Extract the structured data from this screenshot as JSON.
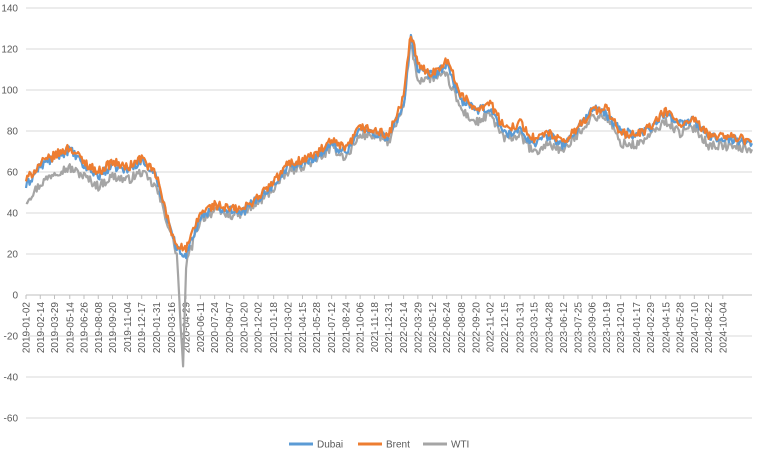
{
  "chart_data": {
    "type": "line",
    "title": "",
    "xlabel": "",
    "ylabel": "",
    "ylim": [
      -60,
      140
    ],
    "yticks": [
      -60,
      -40,
      -20,
      0,
      20,
      40,
      60,
      80,
      100,
      120,
      140
    ],
    "grid": "horizontal",
    "legend": "bottom-center",
    "x_start": "2019-01-02",
    "x_end": "2024-12-31",
    "x_tick_labels": [
      "2019-01-02",
      "2019-02-14",
      "2019-03-29",
      "2019-05-14",
      "2019-06-26",
      "2019-08-08",
      "2019-09-20",
      "2019-11-04",
      "2019-12-17",
      "2020-01-31",
      "2020-03-16",
      "2020-04-29",
      "2020-06-11",
      "2020-07-24",
      "2020-09-07",
      "2020-10-20",
      "2020-12-02",
      "2021-01-18",
      "2021-03-02",
      "2021-04-15",
      "2021-05-28",
      "2021-07-12",
      "2021-08-24",
      "2021-10-06",
      "2021-11-18",
      "2021-12-31",
      "2022-02-14",
      "2022-03-29",
      "2022-05-12",
      "2022-06-24",
      "2022-08-08",
      "2022-09-20",
      "2022-11-02",
      "2022-12-15",
      "2023-01-31",
      "2023-03-15",
      "2023-04-28",
      "2023-06-12",
      "2023-07-25",
      "2023-09-06",
      "2023-10-19",
      "2023-12-01",
      "2024-01-17",
      "2024-02-29",
      "2024-04-15",
      "2024-05-28",
      "2024-07-10",
      "2024-08-22",
      "2024-10-04"
    ],
    "series": [
      {
        "name": "Dubai",
        "color": "#5B9BD5",
        "points": [
          [
            "2019-01-02",
            53
          ],
          [
            "2019-02-14",
            63
          ],
          [
            "2019-03-29",
            67
          ],
          [
            "2019-05-14",
            71
          ],
          [
            "2019-06-26",
            63
          ],
          [
            "2019-08-08",
            58
          ],
          [
            "2019-09-20",
            63
          ],
          [
            "2019-11-04",
            61
          ],
          [
            "2019-12-17",
            66
          ],
          [
            "2020-01-31",
            57
          ],
          [
            "2020-03-16",
            31
          ],
          [
            "2020-04-01",
            22
          ],
          [
            "2020-04-29",
            20
          ],
          [
            "2020-06-11",
            38
          ],
          [
            "2020-07-24",
            43
          ],
          [
            "2020-09-07",
            42
          ],
          [
            "2020-10-20",
            41
          ],
          [
            "2020-12-02",
            47
          ],
          [
            "2021-01-18",
            54
          ],
          [
            "2021-03-02",
            63
          ],
          [
            "2021-04-15",
            64
          ],
          [
            "2021-05-28",
            68
          ],
          [
            "2021-07-12",
            73
          ],
          [
            "2021-08-24",
            70
          ],
          [
            "2021-10-06",
            81
          ],
          [
            "2021-11-18",
            79
          ],
          [
            "2021-12-31",
            77
          ],
          [
            "2022-02-14",
            92
          ],
          [
            "2022-03-08",
            127
          ],
          [
            "2022-03-29",
            109
          ],
          [
            "2022-05-12",
            107
          ],
          [
            "2022-06-24",
            112
          ],
          [
            "2022-08-08",
            95
          ],
          [
            "2022-09-20",
            90
          ],
          [
            "2022-11-02",
            91
          ],
          [
            "2022-12-15",
            79
          ],
          [
            "2023-01-31",
            80
          ],
          [
            "2023-03-15",
            74
          ],
          [
            "2023-04-28",
            78
          ],
          [
            "2023-06-12",
            73
          ],
          [
            "2023-07-25",
            81
          ],
          [
            "2023-09-06",
            91
          ],
          [
            "2023-10-19",
            88
          ],
          [
            "2023-12-01",
            80
          ],
          [
            "2024-01-17",
            78
          ],
          [
            "2024-02-29",
            82
          ],
          [
            "2024-04-15",
            89
          ],
          [
            "2024-05-28",
            84
          ],
          [
            "2024-07-10",
            85
          ],
          [
            "2024-08-22",
            77
          ],
          [
            "2024-10-04",
            77
          ],
          [
            "2024-12-31",
            74
          ]
        ]
      },
      {
        "name": "Brent",
        "color": "#ED7D31",
        "points": [
          [
            "2019-01-02",
            56
          ],
          [
            "2019-02-14",
            64
          ],
          [
            "2019-03-29",
            68
          ],
          [
            "2019-05-14",
            72
          ],
          [
            "2019-06-26",
            65
          ],
          [
            "2019-08-08",
            60
          ],
          [
            "2019-09-20",
            65
          ],
          [
            "2019-11-04",
            62
          ],
          [
            "2019-12-17",
            67
          ],
          [
            "2020-01-31",
            58
          ],
          [
            "2020-03-16",
            30
          ],
          [
            "2020-04-01",
            25
          ],
          [
            "2020-04-29",
            22
          ],
          [
            "2020-06-11",
            40
          ],
          [
            "2020-07-24",
            44
          ],
          [
            "2020-09-07",
            42
          ],
          [
            "2020-10-20",
            42
          ],
          [
            "2020-12-02",
            48
          ],
          [
            "2021-01-18",
            55
          ],
          [
            "2021-03-02",
            64
          ],
          [
            "2021-04-15",
            66
          ],
          [
            "2021-05-28",
            69
          ],
          [
            "2021-07-12",
            75
          ],
          [
            "2021-08-24",
            71
          ],
          [
            "2021-10-06",
            82
          ],
          [
            "2021-11-18",
            80
          ],
          [
            "2021-12-31",
            78
          ],
          [
            "2022-02-14",
            96
          ],
          [
            "2022-03-08",
            128
          ],
          [
            "2022-03-29",
            112
          ],
          [
            "2022-05-12",
            108
          ],
          [
            "2022-06-24",
            115
          ],
          [
            "2022-08-08",
            97
          ],
          [
            "2022-09-20",
            91
          ],
          [
            "2022-11-02",
            94
          ],
          [
            "2022-12-15",
            81
          ],
          [
            "2023-01-31",
            84
          ],
          [
            "2023-03-15",
            76
          ],
          [
            "2023-04-28",
            79
          ],
          [
            "2023-06-12",
            74
          ],
          [
            "2023-07-25",
            82
          ],
          [
            "2023-09-06",
            90
          ],
          [
            "2023-10-19",
            91
          ],
          [
            "2023-12-01",
            79
          ],
          [
            "2024-01-17",
            78
          ],
          [
            "2024-02-29",
            82
          ],
          [
            "2024-04-15",
            90
          ],
          [
            "2024-05-28",
            83
          ],
          [
            "2024-07-10",
            85
          ],
          [
            "2024-08-22",
            78
          ],
          [
            "2024-10-04",
            78
          ],
          [
            "2024-12-31",
            75
          ]
        ]
      },
      {
        "name": "WTI",
        "color": "#A5A5A5",
        "points": [
          [
            "2019-01-02",
            46
          ],
          [
            "2019-02-14",
            54
          ],
          [
            "2019-03-29",
            60
          ],
          [
            "2019-05-14",
            62
          ],
          [
            "2019-06-26",
            58
          ],
          [
            "2019-08-08",
            53
          ],
          [
            "2019-09-20",
            58
          ],
          [
            "2019-11-04",
            56
          ],
          [
            "2019-12-17",
            60
          ],
          [
            "2020-01-31",
            52
          ],
          [
            "2020-03-16",
            29
          ],
          [
            "2020-04-01",
            20
          ],
          [
            "2020-04-20",
            -37
          ],
          [
            "2020-04-29",
            15
          ],
          [
            "2020-06-11",
            37
          ],
          [
            "2020-07-24",
            41
          ],
          [
            "2020-09-07",
            39
          ],
          [
            "2020-10-20",
            40
          ],
          [
            "2020-12-02",
            45
          ],
          [
            "2021-01-18",
            52
          ],
          [
            "2021-03-02",
            60
          ],
          [
            "2021-04-15",
            63
          ],
          [
            "2021-05-28",
            66
          ],
          [
            "2021-07-12",
            72
          ],
          [
            "2021-08-24",
            67
          ],
          [
            "2021-10-06",
            78
          ],
          [
            "2021-11-18",
            78
          ],
          [
            "2021-12-31",
            75
          ],
          [
            "2022-02-14",
            91
          ],
          [
            "2022-03-08",
            123
          ],
          [
            "2022-03-29",
            105
          ],
          [
            "2022-05-12",
            106
          ],
          [
            "2022-06-24",
            107
          ],
          [
            "2022-08-08",
            90
          ],
          [
            "2022-09-20",
            84
          ],
          [
            "2022-11-02",
            88
          ],
          [
            "2022-12-15",
            76
          ],
          [
            "2023-01-31",
            78
          ],
          [
            "2023-03-15",
            69
          ],
          [
            "2023-04-28",
            74
          ],
          [
            "2023-06-12",
            70
          ],
          [
            "2023-07-25",
            79
          ],
          [
            "2023-09-06",
            87
          ],
          [
            "2023-10-19",
            87
          ],
          [
            "2023-12-01",
            74
          ],
          [
            "2024-01-17",
            73
          ],
          [
            "2024-02-29",
            78
          ],
          [
            "2024-04-15",
            85
          ],
          [
            "2024-05-28",
            79
          ],
          [
            "2024-07-10",
            82
          ],
          [
            "2024-08-22",
            73
          ],
          [
            "2024-10-04",
            73
          ],
          [
            "2024-12-31",
            71
          ]
        ]
      }
    ]
  }
}
